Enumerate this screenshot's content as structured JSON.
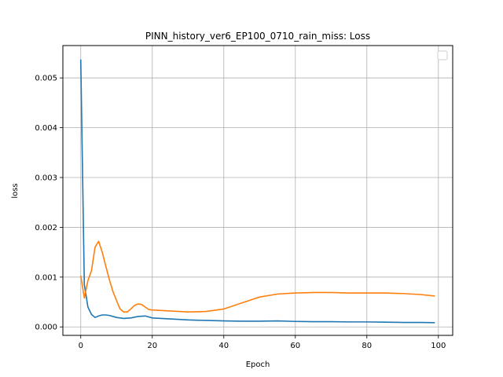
{
  "chart_data": {
    "type": "line",
    "title": "PINN_history_ver6_EP100_0710_rain_miss: Loss",
    "xlabel": "Epoch",
    "ylabel": "loss",
    "xlim": [
      -5,
      104
    ],
    "ylim": [
      -0.00017,
      0.00565
    ],
    "xticks": [
      0,
      20,
      40,
      60,
      80,
      100
    ],
    "yticks": [
      0.0,
      0.001,
      0.002,
      0.003,
      0.004,
      0.005
    ],
    "ytick_labels": [
      "0.000",
      "0.001",
      "0.002",
      "0.003",
      "0.004",
      "0.005"
    ],
    "grid": true,
    "legend": "upper right (empty)",
    "series": [
      {
        "color": "#1f77b4",
        "x": [
          0,
          1,
          2,
          3,
          4,
          5,
          6,
          7,
          8,
          10,
          12,
          14,
          16,
          18,
          20,
          25,
          30,
          35,
          40,
          45,
          50,
          55,
          60,
          65,
          70,
          75,
          80,
          85,
          90,
          95,
          99
        ],
        "y": [
          0.00537,
          0.00085,
          0.0004,
          0.00025,
          0.00019,
          0.00022,
          0.00024,
          0.00024,
          0.00023,
          0.00019,
          0.00017,
          0.00018,
          0.00021,
          0.00022,
          0.00018,
          0.00016,
          0.00014,
          0.00013,
          0.00012,
          0.000115,
          0.000115,
          0.00012,
          0.00011,
          0.000105,
          0.000105,
          0.0001,
          0.0001,
          9.5e-05,
          9e-05,
          9e-05,
          8.5e-05
        ]
      },
      {
        "color": "#ff7f0e",
        "x": [
          0,
          1,
          2,
          3,
          4,
          5,
          6,
          7,
          8,
          9,
          10,
          11,
          12,
          13,
          14,
          15,
          16,
          17,
          18,
          19,
          20,
          25,
          30,
          35,
          40,
          45,
          50,
          55,
          60,
          65,
          70,
          75,
          80,
          85,
          90,
          95,
          99
        ],
        "y": [
          0.00103,
          0.00058,
          0.00093,
          0.00113,
          0.0016,
          0.00172,
          0.0015,
          0.00122,
          0.00095,
          0.00071,
          0.00053,
          0.00036,
          0.0003,
          0.0003,
          0.00036,
          0.00043,
          0.00046,
          0.00045,
          0.0004,
          0.00035,
          0.00034,
          0.00032,
          0.0003,
          0.00031,
          0.00036,
          0.00048,
          0.0006,
          0.00066,
          0.00068,
          0.00069,
          0.00069,
          0.00068,
          0.00068,
          0.00068,
          0.00067,
          0.00065,
          0.00062
        ]
      }
    ]
  }
}
